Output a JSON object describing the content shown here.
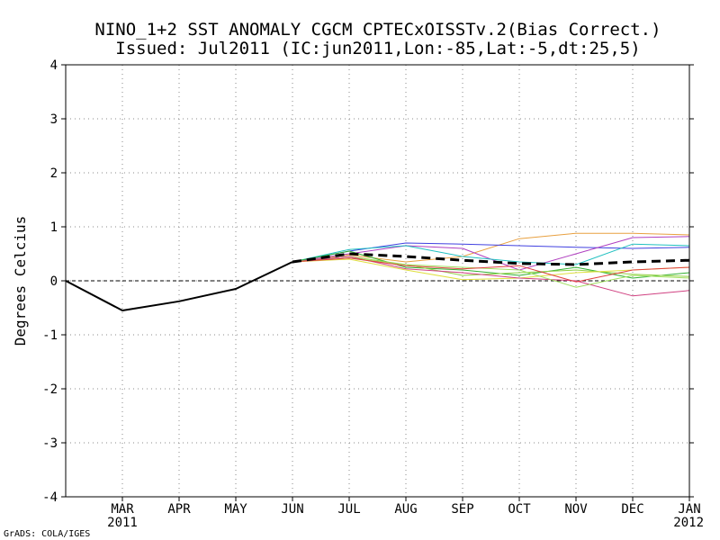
{
  "chart_data": {
    "type": "line",
    "title": "NINO_1+2 SST ANOMALY CGCM CPTECxOISSTv.2(Bias Correct.)",
    "subtitle": "Issued:  Jul2011 (IC:jun2011,Lon:-85,Lat:-5,dt:25,5)",
    "xlabel": "",
    "ylabel": "Degrees Celcius",
    "ylim": [
      -4,
      4
    ],
    "y_ticks": [
      -4,
      -3,
      -2,
      -1,
      0,
      1,
      2,
      3,
      4
    ],
    "grid": true,
    "x": [
      0,
      1,
      2,
      3,
      4,
      5,
      6,
      7,
      8,
      9,
      10,
      11
    ],
    "x_tick_labels": [
      {
        "x": 1,
        "label": "MAR",
        "sub": "2011"
      },
      {
        "x": 2,
        "label": "APR",
        "sub": ""
      },
      {
        "x": 3,
        "label": "MAY",
        "sub": ""
      },
      {
        "x": 4,
        "label": "JUN",
        "sub": ""
      },
      {
        "x": 5,
        "label": "JUL",
        "sub": ""
      },
      {
        "x": 6,
        "label": "AUG",
        "sub": ""
      },
      {
        "x": 7,
        "label": "SEP",
        "sub": ""
      },
      {
        "x": 8,
        "label": "OCT",
        "sub": ""
      },
      {
        "x": 9,
        "label": "NOV",
        "sub": ""
      },
      {
        "x": 10,
        "label": "DEC",
        "sub": ""
      },
      {
        "x": 11,
        "label": "JAN",
        "sub": "2012"
      }
    ],
    "series": [
      {
        "name": "observed",
        "color": "#000000",
        "style": "solid",
        "width": 2,
        "x": [
          0,
          1,
          2,
          3,
          4
        ],
        "values": [
          0.0,
          -0.55,
          -0.38,
          -0.15,
          0.35
        ]
      },
      {
        "name": "member-orange",
        "color": "#e8a040",
        "style": "solid",
        "width": 1,
        "x": [
          4,
          5,
          6,
          7,
          8,
          9,
          10,
          11
        ],
        "values": [
          0.35,
          0.48,
          0.35,
          0.45,
          0.78,
          0.88,
          0.88,
          0.85
        ]
      },
      {
        "name": "member-blue",
        "color": "#4040e0",
        "style": "solid",
        "width": 1,
        "x": [
          4,
          5,
          6,
          7,
          8,
          9,
          10,
          11
        ],
        "values": [
          0.35,
          0.55,
          0.7,
          0.68,
          0.65,
          0.62,
          0.6,
          0.62
        ]
      },
      {
        "name": "member-purple",
        "color": "#b040c0",
        "style": "solid",
        "width": 1,
        "x": [
          4,
          5,
          6,
          7,
          8,
          9,
          10,
          11
        ],
        "values": [
          0.35,
          0.5,
          0.65,
          0.6,
          0.2,
          0.5,
          0.8,
          0.82
        ]
      },
      {
        "name": "member-cyan",
        "color": "#20c0c0",
        "style": "solid",
        "width": 1,
        "x": [
          4,
          5,
          6,
          7,
          8,
          9,
          10,
          11
        ],
        "values": [
          0.35,
          0.58,
          0.65,
          0.45,
          0.35,
          0.3,
          0.68,
          0.65
        ]
      },
      {
        "name": "member-green",
        "color": "#30b030",
        "style": "solid",
        "width": 1,
        "x": [
          4,
          5,
          6,
          7,
          8,
          9,
          10,
          11
        ],
        "values": [
          0.35,
          0.55,
          0.25,
          0.2,
          0.1,
          0.25,
          0.05,
          0.15
        ]
      },
      {
        "name": "member-yellow-green",
        "color": "#90d040",
        "style": "solid",
        "width": 1,
        "x": [
          4,
          5,
          6,
          7,
          8,
          9,
          10,
          11
        ],
        "values": [
          0.35,
          0.45,
          0.3,
          0.1,
          0.15,
          0.2,
          0.12,
          0.08
        ]
      },
      {
        "name": "member-yellow",
        "color": "#e0e040",
        "style": "solid",
        "width": 1,
        "x": [
          4,
          5,
          6,
          7,
          8,
          9,
          10,
          11
        ],
        "values": [
          0.35,
          0.4,
          0.2,
          0.02,
          0.05,
          0.15,
          0.2,
          0.25
        ]
      },
      {
        "name": "member-magenta",
        "color": "#d04080",
        "style": "solid",
        "width": 1,
        "x": [
          4,
          5,
          6,
          7,
          8,
          9,
          10,
          11
        ],
        "values": [
          0.35,
          0.45,
          0.22,
          0.15,
          0.05,
          0.0,
          -0.28,
          -0.18
        ]
      },
      {
        "name": "member-lime",
        "color": "#a0e060",
        "style": "solid",
        "width": 1,
        "x": [
          4,
          5,
          6,
          7,
          8,
          9,
          10,
          11
        ],
        "values": [
          0.35,
          0.42,
          0.3,
          0.25,
          0.2,
          -0.12,
          0.1,
          0.05
        ]
      },
      {
        "name": "member-red",
        "color": "#e04040",
        "style": "solid",
        "width": 1,
        "x": [
          4,
          5,
          6,
          7,
          8,
          9,
          10,
          11
        ],
        "values": [
          0.35,
          0.42,
          0.28,
          0.22,
          0.28,
          -0.02,
          0.2,
          0.25
        ]
      },
      {
        "name": "ensemble-mean",
        "color": "#000000",
        "style": "dashed",
        "width": 3,
        "x": [
          4,
          5,
          6,
          7,
          8,
          9,
          10,
          11
        ],
        "values": [
          0.35,
          0.5,
          0.45,
          0.38,
          0.32,
          0.3,
          0.35,
          0.38
        ]
      }
    ]
  },
  "footer": {
    "credit": "GrADS: COLA/IGES"
  }
}
